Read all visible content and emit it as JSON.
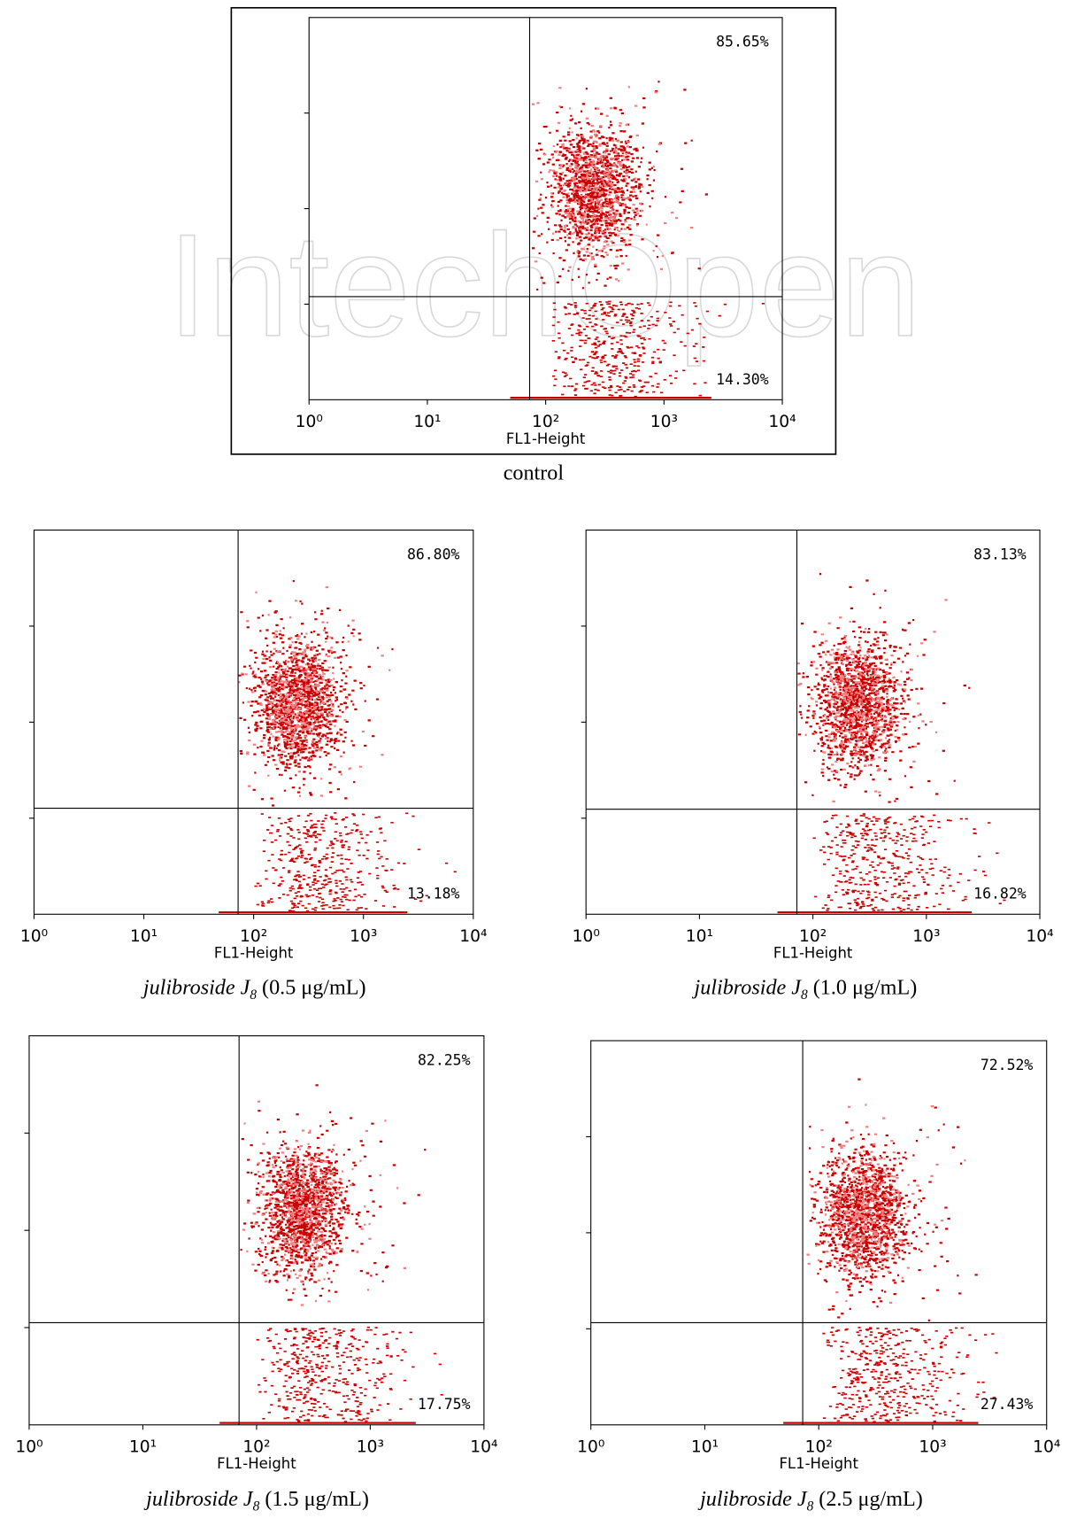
{
  "watermark": "IntechOpen",
  "panels": [
    {
      "caption": {
        "text": "control"
      },
      "x_label": "FL1-Height",
      "x_ticks": [
        "10⁰",
        "10¹",
        "10²",
        "10³",
        "10⁴"
      ],
      "upper_right": "85.65%",
      "lower_right": "14.30%"
    },
    {
      "caption": {
        "compound": "julibroside J",
        "subscript": "8",
        "dose": "(0.5 μg/mL)"
      },
      "x_label": "FL1-Height",
      "x_ticks": [
        "10⁰",
        "10¹",
        "10²",
        "10³",
        "10⁴"
      ],
      "upper_right": "86.80%",
      "lower_right": "13.18%"
    },
    {
      "caption": {
        "compound": "julibroside J",
        "subscript": "8",
        "dose": "(1.0 μg/mL)"
      },
      "x_label": "FL1-Height",
      "x_ticks": [
        "10⁰",
        "10¹",
        "10²",
        "10³",
        "10⁴"
      ],
      "upper_right": "83.13%",
      "lower_right": "16.82%"
    },
    {
      "caption": {
        "compound": "julibroside J",
        "subscript": "8",
        "dose": "(1.5 μg/mL)"
      },
      "x_label": "FL1-Height",
      "x_ticks": [
        "10⁰",
        "10¹",
        "10²",
        "10³",
        "10⁴"
      ],
      "upper_right": "82.25%",
      "lower_right": "17.75%"
    },
    {
      "caption": {
        "compound": "julibroside J",
        "subscript": "8",
        "dose": "(2.5 μg/mL)"
      },
      "x_label": "FL1-Height",
      "x_ticks": [
        "10⁰",
        "10¹",
        "10²",
        "10³",
        "10⁴"
      ],
      "upper_right": "72.52%",
      "lower_right": "27.43%"
    }
  ]
}
